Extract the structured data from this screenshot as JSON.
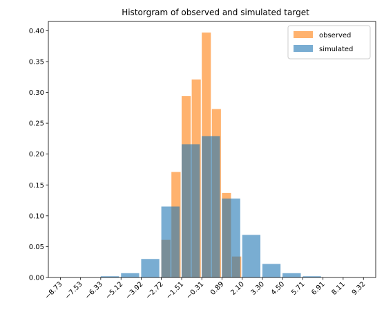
{
  "chart_data": {
    "type": "bar",
    "title": "Historgram of observed and simulated target",
    "xlabel": "",
    "ylabel": "",
    "xlim": [
      -9.45,
      10.05
    ],
    "ylim": [
      0,
      0.415
    ],
    "x_tick_values": [
      -8.73,
      -7.53,
      -6.33,
      -5.12,
      -3.92,
      -2.72,
      -1.51,
      -0.31,
      0.89,
      2.1,
      3.3,
      4.5,
      5.71,
      6.91,
      8.11,
      9.32
    ],
    "x_tick_labels": [
      "−8.73",
      "−7.53",
      "−6.33",
      "−5.12",
      "−3.92",
      "−2.72",
      "−1.51",
      "−0.31",
      "0.89",
      "2.10",
      "3.30",
      "4.50",
      "5.71",
      "6.91",
      "8.11",
      "9.32"
    ],
    "y_tick_values": [
      0.0,
      0.05,
      0.1,
      0.15,
      0.2,
      0.25,
      0.3,
      0.35,
      0.4
    ],
    "y_tick_labels": [
      "0.00",
      "0.05",
      "0.10",
      "0.15",
      "0.20",
      "0.25",
      "0.30",
      "0.35",
      "0.40"
    ],
    "grid": false,
    "legend": {
      "position": "top-right",
      "entries": [
        "observed",
        "simulated"
      ]
    },
    "series": [
      {
        "name": "observed",
        "color": "#ff7f0e",
        "opacity": 0.6,
        "bars": [
          {
            "x0": -2.72,
            "x1": -2.12,
            "value": 0.061
          },
          {
            "x0": -2.12,
            "x1": -1.51,
            "value": 0.171
          },
          {
            "x0": -1.51,
            "x1": -0.91,
            "value": 0.294
          },
          {
            "x0": -0.91,
            "x1": -0.31,
            "value": 0.321
          },
          {
            "x0": -0.31,
            "x1": 0.29,
            "value": 0.397
          },
          {
            "x0": 0.29,
            "x1": 0.89,
            "value": 0.273
          },
          {
            "x0": 0.89,
            "x1": 1.49,
            "value": 0.137
          },
          {
            "x0": 1.49,
            "x1": 2.1,
            "value": 0.034
          }
        ]
      },
      {
        "name": "simulated",
        "color": "#1f77b4",
        "opacity": 0.6,
        "bars": [
          {
            "x0": -8.73,
            "x1": -7.53,
            "value": 0.0
          },
          {
            "x0": -7.53,
            "x1": -6.33,
            "value": 0.0
          },
          {
            "x0": -6.33,
            "x1": -5.12,
            "value": 0.002
          },
          {
            "x0": -5.12,
            "x1": -3.92,
            "value": 0.007
          },
          {
            "x0": -3.92,
            "x1": -2.72,
            "value": 0.03
          },
          {
            "x0": -2.72,
            "x1": -1.51,
            "value": 0.115
          },
          {
            "x0": -1.51,
            "x1": -0.31,
            "value": 0.216
          },
          {
            "x0": -0.31,
            "x1": 0.89,
            "value": 0.229
          },
          {
            "x0": 0.89,
            "x1": 2.1,
            "value": 0.128
          },
          {
            "x0": 2.1,
            "x1": 3.3,
            "value": 0.069
          },
          {
            "x0": 3.3,
            "x1": 4.5,
            "value": 0.022
          },
          {
            "x0": 4.5,
            "x1": 5.71,
            "value": 0.007
          },
          {
            "x0": 5.71,
            "x1": 6.91,
            "value": 0.002
          },
          {
            "x0": 6.91,
            "x1": 8.11,
            "value": 0.0
          },
          {
            "x0": 8.11,
            "x1": 9.32,
            "value": 0.0
          }
        ]
      }
    ]
  }
}
